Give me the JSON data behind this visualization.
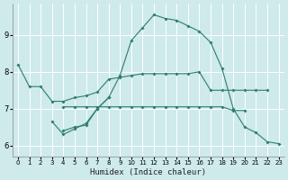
{
  "xlabel": "Humidex (Indice chaleur)",
  "bg_color": "#ceeaea",
  "grid_color": "#ffffff",
  "line_color": "#2e7d6e",
  "x_ticks": [
    0,
    1,
    2,
    3,
    4,
    5,
    6,
    7,
    8,
    9,
    10,
    11,
    12,
    13,
    14,
    15,
    16,
    17,
    18,
    19,
    20,
    21,
    22,
    23
  ],
  "xlim": [
    -0.5,
    23.5
  ],
  "ylim": [
    5.7,
    9.85
  ],
  "y_ticks": [
    6,
    7,
    8,
    9
  ],
  "series": [
    {
      "x": [
        0,
        1,
        2,
        3,
        4,
        5,
        6,
        7,
        8,
        9,
        10,
        11,
        12,
        13,
        14,
        15,
        16,
        17,
        18,
        19,
        20,
        21,
        22
      ],
      "y": [
        8.2,
        7.6,
        7.6,
        7.2,
        7.2,
        7.3,
        7.35,
        7.45,
        7.8,
        7.85,
        7.9,
        7.95,
        7.95,
        7.95,
        7.95,
        7.95,
        8.0,
        7.5,
        7.5,
        7.5,
        7.5,
        7.5,
        7.5
      ]
    },
    {
      "x": [
        3,
        4,
        5,
        6,
        7,
        8
      ],
      "y": [
        6.65,
        6.3,
        6.45,
        6.6,
        7.0,
        7.3
      ]
    },
    {
      "x": [
        4,
        5,
        6,
        7,
        8,
        9,
        10,
        11,
        12,
        13,
        14,
        15,
        16,
        17,
        18,
        19,
        20,
        21,
        22,
        23
      ],
      "y": [
        6.4,
        6.5,
        6.55,
        7.0,
        7.3,
        7.9,
        8.85,
        9.2,
        9.55,
        9.45,
        9.4,
        9.25,
        9.1,
        8.8,
        8.1,
        7.0,
        6.5,
        6.35,
        6.1,
        6.05
      ]
    },
    {
      "x": [
        4,
        5,
        6,
        7,
        8,
        9,
        10,
        11,
        12,
        13,
        14,
        15,
        16,
        17,
        18,
        19,
        20
      ],
      "y": [
        7.05,
        7.05,
        7.05,
        7.05,
        7.05,
        7.05,
        7.05,
        7.05,
        7.05,
        7.05,
        7.05,
        7.05,
        7.05,
        7.05,
        7.05,
        6.95,
        6.95
      ]
    }
  ]
}
